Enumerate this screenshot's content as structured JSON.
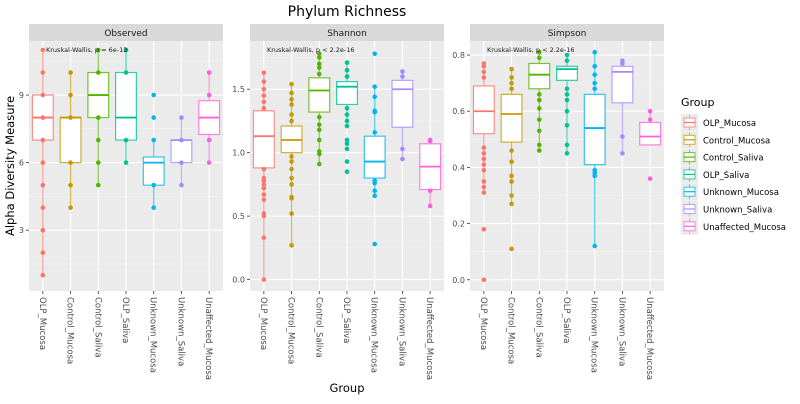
{
  "chart_data": {
    "type": "boxplot",
    "title": "Phylum Richness",
    "xlabel": "Group",
    "ylabel": "Alpha Diversity Measure",
    "grid": true,
    "legend": {
      "title": "Group",
      "position": "right",
      "entries": [
        "OLP_Mucosa",
        "Control_Mucosa",
        "Control_Saliva",
        "OLP_Saliva",
        "Unknown_Mucosa",
        "Unknown_Saliva",
        "Unaffected_Mucosa"
      ]
    },
    "categories": [
      "OLP_Mucosa",
      "Control_Mucosa",
      "Control_Saliva",
      "OLP_Saliva",
      "Unknown_Mucosa",
      "Unknown_Saliva",
      "Unaffected_Mucosa"
    ],
    "colors": {
      "OLP_Mucosa": "#F8766D",
      "Control_Mucosa": "#C49A00",
      "Control_Saliva": "#53B400",
      "OLP_Saliva": "#00C094",
      "Unknown_Mucosa": "#00B6EB",
      "Unknown_Saliva": "#A58AFF",
      "Unaffected_Mucosa": "#FB61D7"
    },
    "panels": [
      {
        "name": "Observed",
        "annotation": "Kruskal-Wallis, p = 6e-13",
        "ylim": [
          0.3,
          11.4
        ],
        "yticks": [
          3,
          6,
          9
        ],
        "ytick_labels": [
          "3",
          "6",
          "9"
        ],
        "boxes": [
          {
            "group": "OLP_Mucosa",
            "q1": 7,
            "median": 8,
            "q3": 9,
            "whisker_low": 1,
            "whisker_high": 11,
            "points": [
              1,
              2,
              3,
              4,
              5,
              6,
              7,
              8,
              9,
              10,
              11
            ]
          },
          {
            "group": "Control_Mucosa",
            "q1": 6,
            "median": 8,
            "q3": 8,
            "whisker_low": 4,
            "whisker_high": 10,
            "points": [
              4,
              5,
              6,
              8,
              9,
              10
            ]
          },
          {
            "group": "Control_Saliva",
            "q1": 8,
            "median": 9,
            "q3": 10,
            "whisker_low": 5,
            "whisker_high": 11,
            "points": [
              5,
              6,
              7,
              8,
              10,
              11
            ]
          },
          {
            "group": "OLP_Saliva",
            "q1": 7,
            "median": 8,
            "q3": 10,
            "whisker_low": 6,
            "whisker_high": 11,
            "points": [
              6,
              7,
              10,
              11
            ]
          },
          {
            "group": "Unknown_Mucosa",
            "q1": 5,
            "median": 6,
            "q3": 6.25,
            "whisker_low": 4,
            "whisker_high": 7,
            "points": [
              4,
              5,
              7,
              8,
              9
            ]
          },
          {
            "group": "Unknown_Saliva",
            "q1": 6,
            "median": 7,
            "q3": 7,
            "whisker_low": 5,
            "whisker_high": 8,
            "points": [
              5,
              6,
              7,
              8
            ]
          },
          {
            "group": "Unaffected_Mucosa",
            "q1": 7.25,
            "median": 8,
            "q3": 8.75,
            "whisker_low": 6,
            "whisker_high": 10,
            "points": [
              6,
              7,
              9,
              10
            ]
          }
        ]
      },
      {
        "name": "Shannon",
        "annotation": "Kruskal-Wallis, p < 2.2e-16",
        "ylim": [
          -0.09,
          1.88
        ],
        "yticks": [
          0.0,
          0.5,
          1.0,
          1.5
        ],
        "ytick_labels": [
          "0.0",
          "0.5",
          "1.0",
          "1.5"
        ],
        "boxes": [
          {
            "group": "OLP_Mucosa",
            "q1": 0.88,
            "median": 1.13,
            "q3": 1.33,
            "whisker_low": 0.0,
            "whisker_high": 1.63,
            "points": [
              0.0,
              0.33,
              0.5,
              0.52,
              0.63,
              0.67,
              0.72,
              0.75,
              0.78,
              0.8,
              0.87,
              1.35,
              1.4,
              1.45,
              1.5,
              1.56,
              1.63
            ]
          },
          {
            "group": "Control_Mucosa",
            "q1": 1.0,
            "median": 1.1,
            "q3": 1.21,
            "whisker_low": 0.27,
            "whisker_high": 1.54,
            "points": [
              0.27,
              0.52,
              0.64,
              0.65,
              0.75,
              0.8,
              0.87,
              0.93,
              0.97,
              1.25,
              1.3,
              1.38,
              1.42,
              1.47,
              1.54
            ]
          },
          {
            "group": "Control_Saliva",
            "q1": 1.32,
            "median": 1.49,
            "q3": 1.59,
            "whisker_low": 0.91,
            "whisker_high": 1.78,
            "points": [
              0.91,
              0.99,
              1.01,
              1.1,
              1.18,
              1.22,
              1.28,
              1.62,
              1.67,
              1.7,
              1.75,
              1.78
            ]
          },
          {
            "group": "OLP_Saliva",
            "q1": 1.38,
            "median": 1.52,
            "q3": 1.56,
            "whisker_low": 1.21,
            "whisker_high": 1.71,
            "points": [
              0.85,
              0.93,
              1.03,
              1.07,
              1.1,
              1.21,
              1.25,
              1.3,
              1.35,
              1.6,
              1.65,
              1.71
            ]
          },
          {
            "group": "Unknown_Mucosa",
            "q1": 0.8,
            "median": 0.93,
            "q3": 1.13,
            "whisker_low": 0.66,
            "whisker_high": 1.52,
            "points": [
              0.28,
              0.66,
              0.7,
              0.76,
              0.78,
              1.16,
              1.32,
              1.33,
              1.44,
              1.52,
              1.78
            ]
          },
          {
            "group": "Unknown_Saliva",
            "q1": 1.2,
            "median": 1.5,
            "q3": 1.57,
            "whisker_low": 0.95,
            "whisker_high": 1.64,
            "points": [
              0.95,
              1.03,
              1.6,
              1.64
            ]
          },
          {
            "group": "Unaffected_Mucosa",
            "q1": 0.71,
            "median": 0.89,
            "q3": 1.07,
            "whisker_low": 0.58,
            "whisker_high": 1.1,
            "points": [
              0.58,
              0.7,
              1.09,
              1.1
            ]
          }
        ]
      },
      {
        "name": "Simpson",
        "annotation": "Kruskal-Wallis, p < 2.2e-16",
        "ylim": [
          -0.04,
          0.85
        ],
        "yticks": [
          0.0,
          0.2,
          0.4,
          0.6,
          0.8
        ],
        "ytick_labels": [
          "0.0",
          "0.2",
          "0.4",
          "0.6",
          "0.8"
        ],
        "boxes": [
          {
            "group": "OLP_Mucosa",
            "q1": 0.52,
            "median": 0.6,
            "q3": 0.69,
            "whisker_low": 0.31,
            "whisker_high": 0.77,
            "points": [
              0.0,
              0.18,
              0.31,
              0.33,
              0.35,
              0.39,
              0.41,
              0.43,
              0.45,
              0.47,
              0.72,
              0.74,
              0.76,
              0.77
            ]
          },
          {
            "group": "Control_Mucosa",
            "q1": 0.49,
            "median": 0.59,
            "q3": 0.66,
            "whisker_low": 0.27,
            "whisker_high": 0.75,
            "points": [
              0.11,
              0.27,
              0.3,
              0.35,
              0.37,
              0.42,
              0.46,
              0.68,
              0.7,
              0.72,
              0.75
            ]
          },
          {
            "group": "Control_Saliva",
            "q1": 0.68,
            "median": 0.73,
            "q3": 0.77,
            "whisker_low": 0.46,
            "whisker_high": 0.81,
            "points": [
              0.46,
              0.48,
              0.53,
              0.57,
              0.61,
              0.64,
              0.66,
              0.79,
              0.81
            ]
          },
          {
            "group": "OLP_Saliva",
            "q1": 0.71,
            "median": 0.75,
            "q3": 0.76,
            "whisker_low": 0.45,
            "whisker_high": 0.8,
            "points": [
              0.45,
              0.48,
              0.55,
              0.6,
              0.64,
              0.66,
              0.68,
              0.78,
              0.8
            ]
          },
          {
            "group": "Unknown_Mucosa",
            "q1": 0.41,
            "median": 0.54,
            "q3": 0.66,
            "whisker_low": 0.12,
            "whisker_high": 0.81,
            "points": [
              0.12,
              0.37,
              0.38,
              0.39,
              0.68,
              0.7,
              0.73,
              0.76,
              0.81
            ]
          },
          {
            "group": "Unknown_Saliva",
            "q1": 0.63,
            "median": 0.74,
            "q3": 0.76,
            "whisker_low": 0.45,
            "whisker_high": 0.78,
            "points": [
              0.45,
              0.51,
              0.77,
              0.78
            ]
          },
          {
            "group": "Unaffected_Mucosa",
            "q1": 0.48,
            "median": 0.51,
            "q3": 0.56,
            "whisker_low": 0.48,
            "whisker_high": 0.6,
            "points": [
              0.36,
              0.57,
              0.6
            ]
          }
        ]
      }
    ]
  }
}
